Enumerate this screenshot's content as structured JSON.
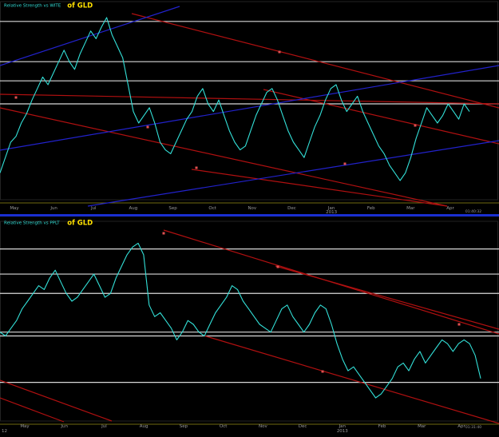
{
  "colors": {
    "background": "#000000",
    "line": "#33e0d8",
    "trend_red": "#b01010",
    "trend_blue": "#2222cc",
    "separator": "#1a2fd0",
    "title_small": "#33e0d8",
    "title_large": "#ffe000",
    "axis_text": "#9a9a9a"
  },
  "chart_data": [
    {
      "type": "line",
      "title": "Relative Strength vs WITE",
      "title_suffix": "of GLD",
      "x_ticks": [
        "May",
        "Jun",
        "Jul",
        "Aug",
        "Sep",
        "Oct",
        "Nov",
        "Dec",
        "Jan",
        "Feb",
        "Mar",
        "Apr"
      ],
      "x_ticks_sub": "2013",
      "time_label": "01:40:32",
      "ylim": [
        0,
        100
      ],
      "horizontal_levels": [
        93,
        72,
        62,
        50
      ],
      "series": [
        {
          "values": [
            14,
            22,
            30,
            33,
            40,
            45,
            52,
            58,
            64,
            60,
            66,
            72,
            78,
            72,
            68,
            76,
            82,
            88,
            84,
            90,
            95,
            86,
            80,
            74,
            60,
            46,
            40,
            44,
            48,
            40,
            30,
            26,
            24,
            30,
            36,
            42,
            46,
            54,
            58,
            50,
            46,
            52,
            44,
            36,
            30,
            26,
            28,
            36,
            44,
            50,
            56,
            58,
            52,
            44,
            36,
            30,
            26,
            22,
            30,
            38,
            44,
            52,
            58,
            60,
            52,
            46,
            50,
            54,
            46,
            40,
            34,
            28,
            24,
            18,
            14,
            10,
            14,
            22,
            32,
            40,
            48,
            44,
            40,
            44,
            50,
            46,
            42,
            50,
            46
          ]
        }
      ]
    },
    {
      "type": "line",
      "title": "Relative Strength vs PPLT",
      "title_suffix": "of GLD",
      "x_ticks": [
        "May",
        "Jun",
        "Jul",
        "Aug",
        "Sep",
        "Oct",
        "Nov",
        "Dec",
        "Jan",
        "Feb",
        "Mar",
        "Apr"
      ],
      "x_ticks_sub": "2013",
      "time_label": "01:31:40",
      "left_label": "12",
      "ylim": [
        0,
        100
      ],
      "horizontal_levels": [
        89,
        76,
        66,
        46,
        44,
        20
      ],
      "series": [
        {
          "values": [
            46,
            44,
            48,
            52,
            58,
            62,
            66,
            70,
            68,
            74,
            78,
            72,
            66,
            62,
            64,
            68,
            72,
            76,
            70,
            64,
            66,
            74,
            80,
            86,
            90,
            92,
            86,
            60,
            54,
            56,
            52,
            48,
            42,
            46,
            52,
            50,
            46,
            44,
            50,
            56,
            60,
            64,
            70,
            68,
            62,
            58,
            54,
            50,
            48,
            46,
            52,
            58,
            60,
            54,
            50,
            46,
            50,
            56,
            60,
            58,
            50,
            40,
            32,
            26,
            28,
            24,
            20,
            16,
            12,
            14,
            18,
            22,
            28,
            30,
            26,
            32,
            36,
            30,
            34,
            38,
            42,
            40,
            36,
            40,
            42,
            40,
            34,
            22
          ]
        }
      ]
    }
  ]
}
